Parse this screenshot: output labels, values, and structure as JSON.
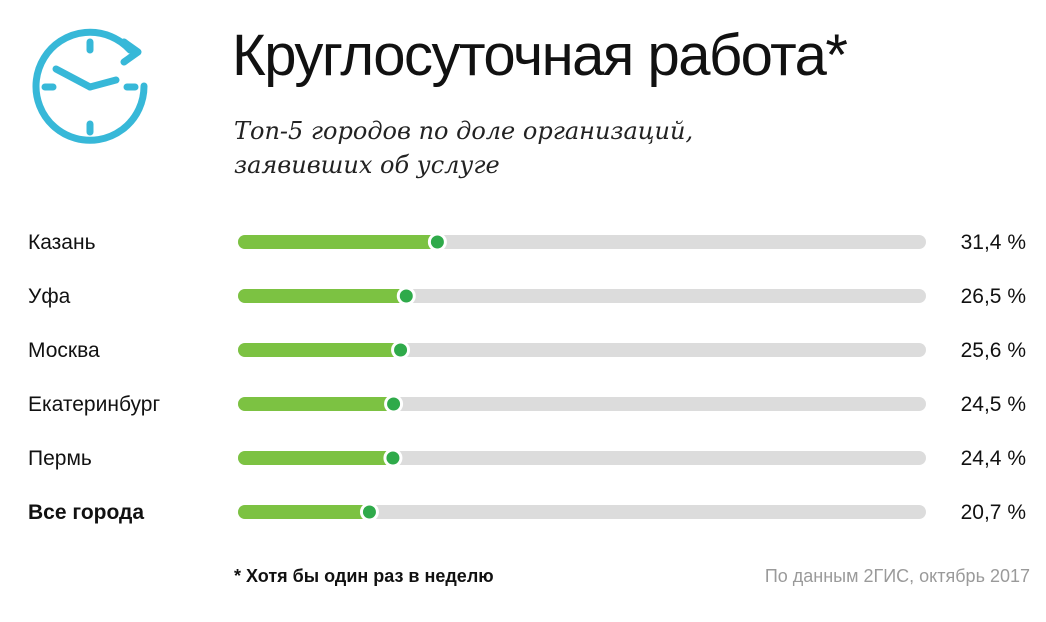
{
  "header": {
    "title": "Круглосуточная работа*",
    "subtitle_line1": "Топ-5 городов по доле организаций,",
    "subtitle_line2": "заявивших об услуге"
  },
  "footer": {
    "footnote": "* Хотя бы один раз в неделю",
    "source": "По данным 2ГИС, октябрь 2017"
  },
  "icons": {
    "logo": "clock-with-arrow-icon"
  },
  "colors": {
    "accent_blue": "#37b8d8",
    "bar_fill": "#7cc242",
    "bar_track": "#dcdcdc",
    "marker_fill": "#2faa4a",
    "marker_stroke": "#ffffff"
  },
  "chart_data": {
    "type": "bar",
    "orientation": "horizontal",
    "categories": [
      "Казань",
      "Уфа",
      "Москва",
      "Екатеринбург",
      "Пермь",
      "Все города"
    ],
    "values": [
      31.4,
      26.5,
      25.6,
      24.5,
      24.4,
      20.7
    ],
    "value_labels": [
      "31,4 %",
      "26,5 %",
      "25,6 %",
      "24,5 %",
      "24,4 %",
      "20,7 %"
    ],
    "highlight": "Все города",
    "unit": "%",
    "xlim": [
      0,
      100
    ],
    "title": "Круглосуточная работа*",
    "xlabel": "",
    "ylabel": "",
    "grid": false
  }
}
